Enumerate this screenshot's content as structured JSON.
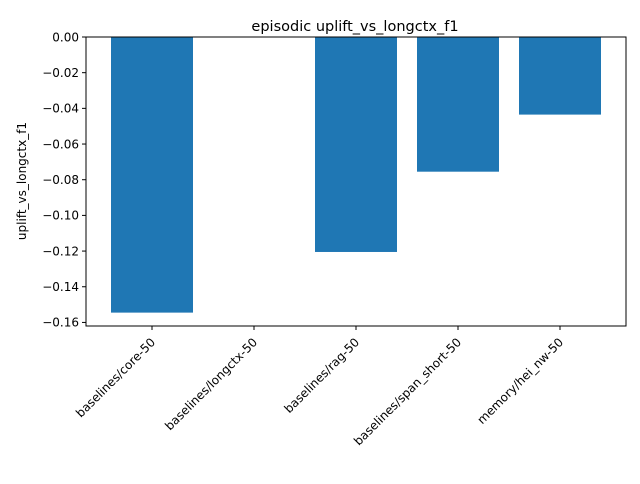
{
  "chart_data": {
    "type": "bar",
    "title": "episodic uplift_vs_longctx_f1",
    "xlabel": "",
    "ylabel": "uplift_vs_longctx_f1",
    "categories": [
      "baselines/core-50",
      "baselines/longctx-50",
      "baselines/rag-50",
      "baselines/span_short-50",
      "memory/hei_nw-50"
    ],
    "values": [
      -0.1545,
      0.0,
      -0.1205,
      -0.0755,
      -0.0435
    ],
    "ylim": [
      -0.162,
      0.0
    ],
    "yticks": [
      0.0,
      -0.02,
      -0.04,
      -0.06,
      -0.08,
      -0.1,
      -0.12,
      -0.14,
      -0.16
    ],
    "ytick_labels": [
      "0.00",
      "−0.02",
      "−0.04",
      "−0.06",
      "−0.08",
      "−0.10",
      "−0.12",
      "−0.14",
      "−0.16"
    ],
    "grid": false,
    "colors": {
      "bar": "#1f77b4",
      "axis": "#000000"
    }
  }
}
